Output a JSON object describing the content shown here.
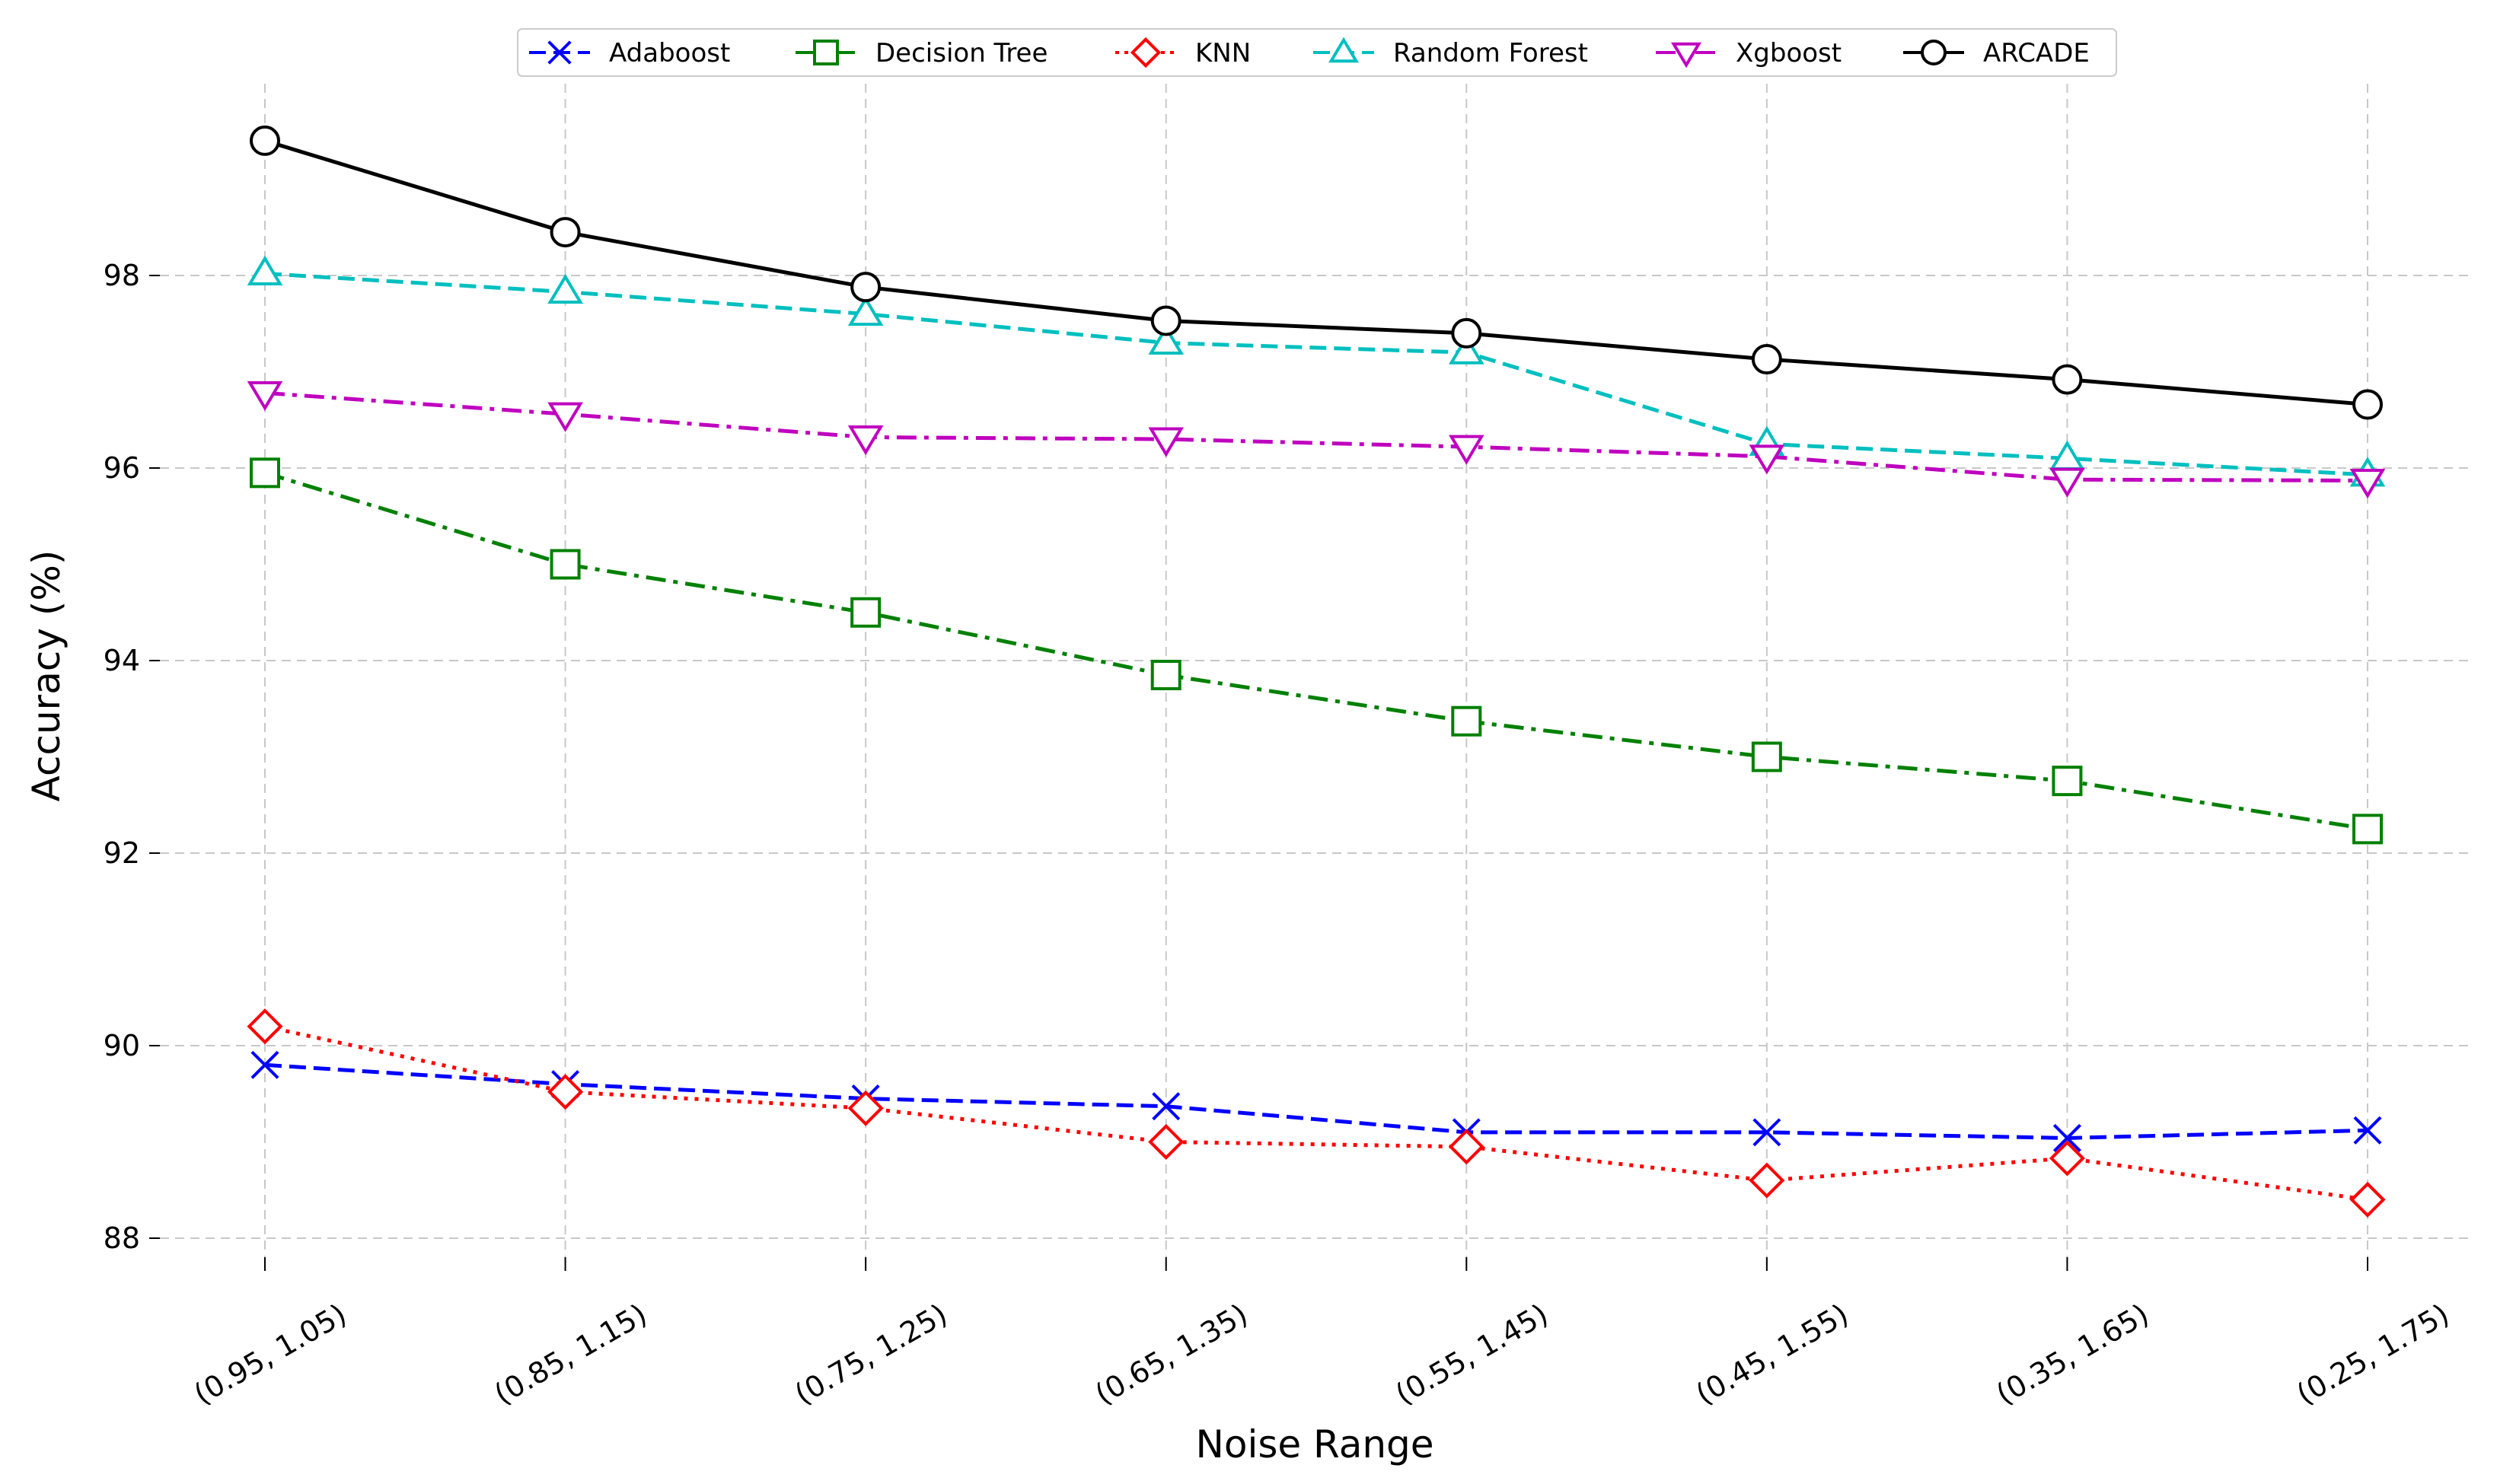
{
  "chart_data": {
    "type": "line",
    "title": "",
    "xlabel": "Noise Range",
    "ylabel": "Accuracy (%)",
    "categories": [
      "(0.95, 1.05)",
      "(0.85, 1.15)",
      "(0.75, 1.25)",
      "(0.65, 1.35)",
      "(0.55, 1.45)",
      "(0.45, 1.55)",
      "(0.35, 1.65)",
      "(0.25, 1.75)"
    ],
    "ylim": [
      87.7,
      99.9
    ],
    "yticks": [
      88,
      90,
      92,
      94,
      96,
      98
    ],
    "grid": true,
    "legend_position": "top-center",
    "series": [
      {
        "name": "Adaboost",
        "color": "#0000ff",
        "marker": "x",
        "linestyle": "dashed",
        "values": [
          89.8,
          89.6,
          89.45,
          89.37,
          89.1,
          89.1,
          89.04,
          89.12
        ]
      },
      {
        "name": "Decision Tree",
        "color": "#008000",
        "marker": "square",
        "linestyle": "dashdot",
        "values": [
          95.95,
          95.0,
          94.5,
          93.85,
          93.37,
          93.0,
          92.75,
          92.25
        ]
      },
      {
        "name": "KNN",
        "color": "#ff0000",
        "marker": "diamond",
        "linestyle": "dotted",
        "values": [
          90.2,
          89.52,
          89.35,
          89.0,
          88.95,
          88.6,
          88.83,
          88.4
        ]
      },
      {
        "name": "Random Forest",
        "color": "#00bfbf",
        "marker": "triangle-up",
        "linestyle": "dashed",
        "values": [
          98.02,
          97.83,
          97.6,
          97.3,
          97.2,
          96.25,
          96.1,
          95.93
        ]
      },
      {
        "name": "Xgboost",
        "color": "#bf00bf",
        "marker": "triangle-down",
        "linestyle": "dashdot",
        "values": [
          96.78,
          96.56,
          96.32,
          96.3,
          96.22,
          96.12,
          95.88,
          95.87
        ]
      },
      {
        "name": "ARCADE",
        "color": "#000000",
        "marker": "circle",
        "linestyle": "solid",
        "values": [
          99.4,
          98.45,
          97.88,
          97.53,
          97.4,
          97.13,
          96.92,
          96.66
        ]
      }
    ]
  }
}
